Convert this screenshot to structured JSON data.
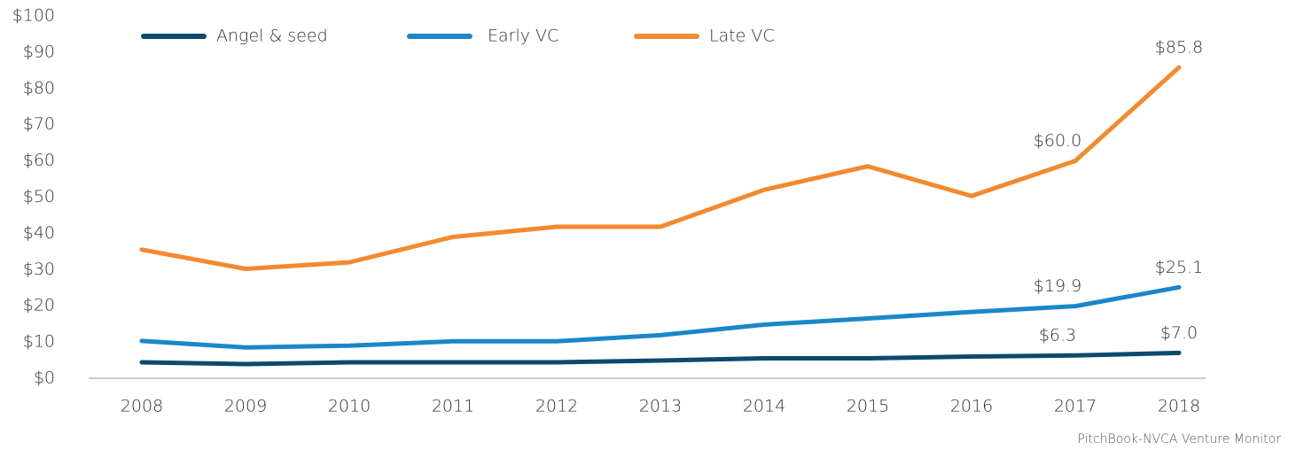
{
  "chart_data": {
    "type": "line",
    "categories": [
      "2008",
      "2009",
      "2010",
      "2011",
      "2012",
      "2013",
      "2014",
      "2015",
      "2016",
      "2017",
      "2018"
    ],
    "series": [
      {
        "name": "Angel & seed",
        "color": "#0b4a6e",
        "values": [
          4.4,
          3.9,
          4.4,
          4.4,
          4.4,
          4.9,
          5.5,
          5.5,
          6.0,
          6.3,
          7.0
        ],
        "value_labels": [
          null,
          null,
          null,
          null,
          null,
          null,
          null,
          null,
          null,
          "$6.3",
          "$7.0"
        ]
      },
      {
        "name": "Early VC",
        "color": "#1b87c9",
        "values": [
          10.3,
          8.5,
          9.0,
          10.2,
          10.2,
          11.9,
          14.8,
          16.5,
          18.3,
          19.9,
          25.1
        ],
        "value_labels": [
          null,
          null,
          null,
          null,
          null,
          null,
          null,
          null,
          null,
          "$19.9",
          "$25.1"
        ]
      },
      {
        "name": "Late VC",
        "color": "#f28a30",
        "values": [
          35.5,
          30.2,
          32.0,
          39.0,
          41.8,
          41.8,
          52.0,
          58.5,
          50.3,
          60.0,
          85.8
        ],
        "value_labels": [
          null,
          null,
          null,
          null,
          null,
          null,
          null,
          null,
          null,
          "$60.0",
          "$85.8"
        ]
      }
    ],
    "ylim": [
      0,
      100
    ],
    "yticks": [
      {
        "value": 0,
        "label": "$0"
      },
      {
        "value": 10,
        "label": "$10"
      },
      {
        "value": 20,
        "label": "$20"
      },
      {
        "value": 30,
        "label": "$30"
      },
      {
        "value": 40,
        "label": "$40"
      },
      {
        "value": 50,
        "label": "$50"
      },
      {
        "value": 60,
        "label": "$60"
      },
      {
        "value": 70,
        "label": "$70"
      },
      {
        "value": 80,
        "label": "$80"
      },
      {
        "value": 90,
        "label": "$90"
      },
      {
        "value": 100,
        "label": "$100"
      }
    ],
    "grid": false,
    "legend": "top",
    "source": "PitchBook-NVCA Venture Monitor"
  }
}
